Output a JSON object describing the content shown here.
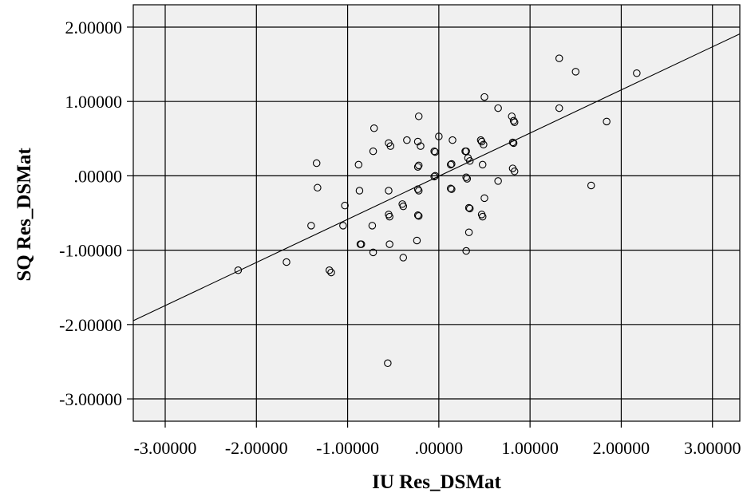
{
  "chart_data": {
    "type": "scatter",
    "xlabel": "IU Res_DSMat",
    "ylabel": "SQ Res_DSMat",
    "xlim": [
      -3.35,
      3.3
    ],
    "ylim": [
      -3.3,
      2.3
    ],
    "x_ticks": [
      -3,
      -2,
      -1,
      0,
      1,
      2,
      3
    ],
    "x_tick_labels": [
      "-3.00000",
      "-2.00000",
      "-1.00000",
      ".00000",
      "1.00000",
      "2.00000",
      "3.00000"
    ],
    "y_ticks": [
      -3,
      -2,
      -1,
      0,
      1,
      2
    ],
    "y_tick_labels": [
      "-3.00000",
      "-2.00000",
      "-1.00000",
      ".00000",
      "1.00000",
      "2.00000"
    ],
    "grid": true,
    "background": "#f0f0f0",
    "marker": "open-circle",
    "fit_line": {
      "type": "linear",
      "slope": 0.58,
      "intercept": -0.005
    },
    "points": [
      {
        "x": -2.2,
        "y": -1.27
      },
      {
        "x": -1.67,
        "y": -1.16
      },
      {
        "x": -1.4,
        "y": -0.67
      },
      {
        "x": -1.34,
        "y": 0.17
      },
      {
        "x": -1.33,
        "y": -0.16
      },
      {
        "x": -1.2,
        "y": -1.27
      },
      {
        "x": -1.18,
        "y": -1.3
      },
      {
        "x": -1.05,
        "y": -0.67
      },
      {
        "x": -1.03,
        "y": -0.4
      },
      {
        "x": -0.88,
        "y": 0.15
      },
      {
        "x": -0.87,
        "y": -0.2
      },
      {
        "x": -0.86,
        "y": -0.92
      },
      {
        "x": -0.85,
        "y": -0.92
      },
      {
        "x": -0.73,
        "y": -0.67
      },
      {
        "x": -0.72,
        "y": -1.03
      },
      {
        "x": -0.72,
        "y": 0.33
      },
      {
        "x": -0.71,
        "y": 0.64
      },
      {
        "x": -0.55,
        "y": -0.2
      },
      {
        "x": -0.55,
        "y": -0.52
      },
      {
        "x": -0.54,
        "y": -0.55
      },
      {
        "x": -0.54,
        "y": -0.92
      },
      {
        "x": -0.55,
        "y": 0.44
      },
      {
        "x": -0.53,
        "y": 0.4
      },
      {
        "x": -0.56,
        "y": -2.52
      },
      {
        "x": -0.4,
        "y": -0.38
      },
      {
        "x": -0.39,
        "y": -0.41
      },
      {
        "x": -0.39,
        "y": -1.1
      },
      {
        "x": -0.35,
        "y": 0.48
      },
      {
        "x": -0.24,
        "y": -0.87
      },
      {
        "x": -0.23,
        "y": -0.53
      },
      {
        "x": -0.22,
        "y": -0.54
      },
      {
        "x": -0.23,
        "y": -0.18
      },
      {
        "x": -0.22,
        "y": -0.2
      },
      {
        "x": -0.23,
        "y": 0.12
      },
      {
        "x": -0.22,
        "y": 0.14
      },
      {
        "x": -0.23,
        "y": 0.46
      },
      {
        "x": -0.2,
        "y": 0.4
      },
      {
        "x": -0.22,
        "y": 0.8
      },
      {
        "x": -0.05,
        "y": 0.33
      },
      {
        "x": -0.04,
        "y": 0.32
      },
      {
        "x": -0.05,
        "y": -0.01
      },
      {
        "x": -0.04,
        "y": 0.0
      },
      {
        "x": 0.0,
        "y": 0.53
      },
      {
        "x": 0.13,
        "y": 0.15
      },
      {
        "x": 0.14,
        "y": 0.16
      },
      {
        "x": 0.13,
        "y": -0.17
      },
      {
        "x": 0.14,
        "y": -0.18
      },
      {
        "x": 0.15,
        "y": 0.48
      },
      {
        "x": 0.29,
        "y": 0.33
      },
      {
        "x": 0.3,
        "y": 0.33
      },
      {
        "x": 0.3,
        "y": -0.02
      },
      {
        "x": 0.31,
        "y": -0.04
      },
      {
        "x": 0.3,
        "y": -1.01
      },
      {
        "x": 0.32,
        "y": 0.24
      },
      {
        "x": 0.34,
        "y": 0.2
      },
      {
        "x": 0.33,
        "y": -0.43
      },
      {
        "x": 0.34,
        "y": -0.44
      },
      {
        "x": 0.33,
        "y": -0.76
      },
      {
        "x": 0.46,
        "y": 0.48
      },
      {
        "x": 0.47,
        "y": 0.46
      },
      {
        "x": 0.49,
        "y": 0.42
      },
      {
        "x": 0.48,
        "y": 0.15
      },
      {
        "x": 0.47,
        "y": -0.52
      },
      {
        "x": 0.48,
        "y": -0.55
      },
      {
        "x": 0.5,
        "y": -0.3
      },
      {
        "x": 0.5,
        "y": 1.06
      },
      {
        "x": 0.65,
        "y": 0.91
      },
      {
        "x": 0.65,
        "y": -0.07
      },
      {
        "x": 0.8,
        "y": 0.8
      },
      {
        "x": 0.82,
        "y": 0.74
      },
      {
        "x": 0.83,
        "y": 0.72
      },
      {
        "x": 0.81,
        "y": 0.45
      },
      {
        "x": 0.82,
        "y": 0.44
      },
      {
        "x": 0.81,
        "y": 0.1
      },
      {
        "x": 0.83,
        "y": 0.06
      },
      {
        "x": 1.32,
        "y": 1.58
      },
      {
        "x": 1.32,
        "y": 0.91
      },
      {
        "x": 1.5,
        "y": 1.4
      },
      {
        "x": 1.67,
        "y": -0.13
      },
      {
        "x": 1.84,
        "y": 0.73
      },
      {
        "x": 2.17,
        "y": 1.38
      }
    ]
  }
}
